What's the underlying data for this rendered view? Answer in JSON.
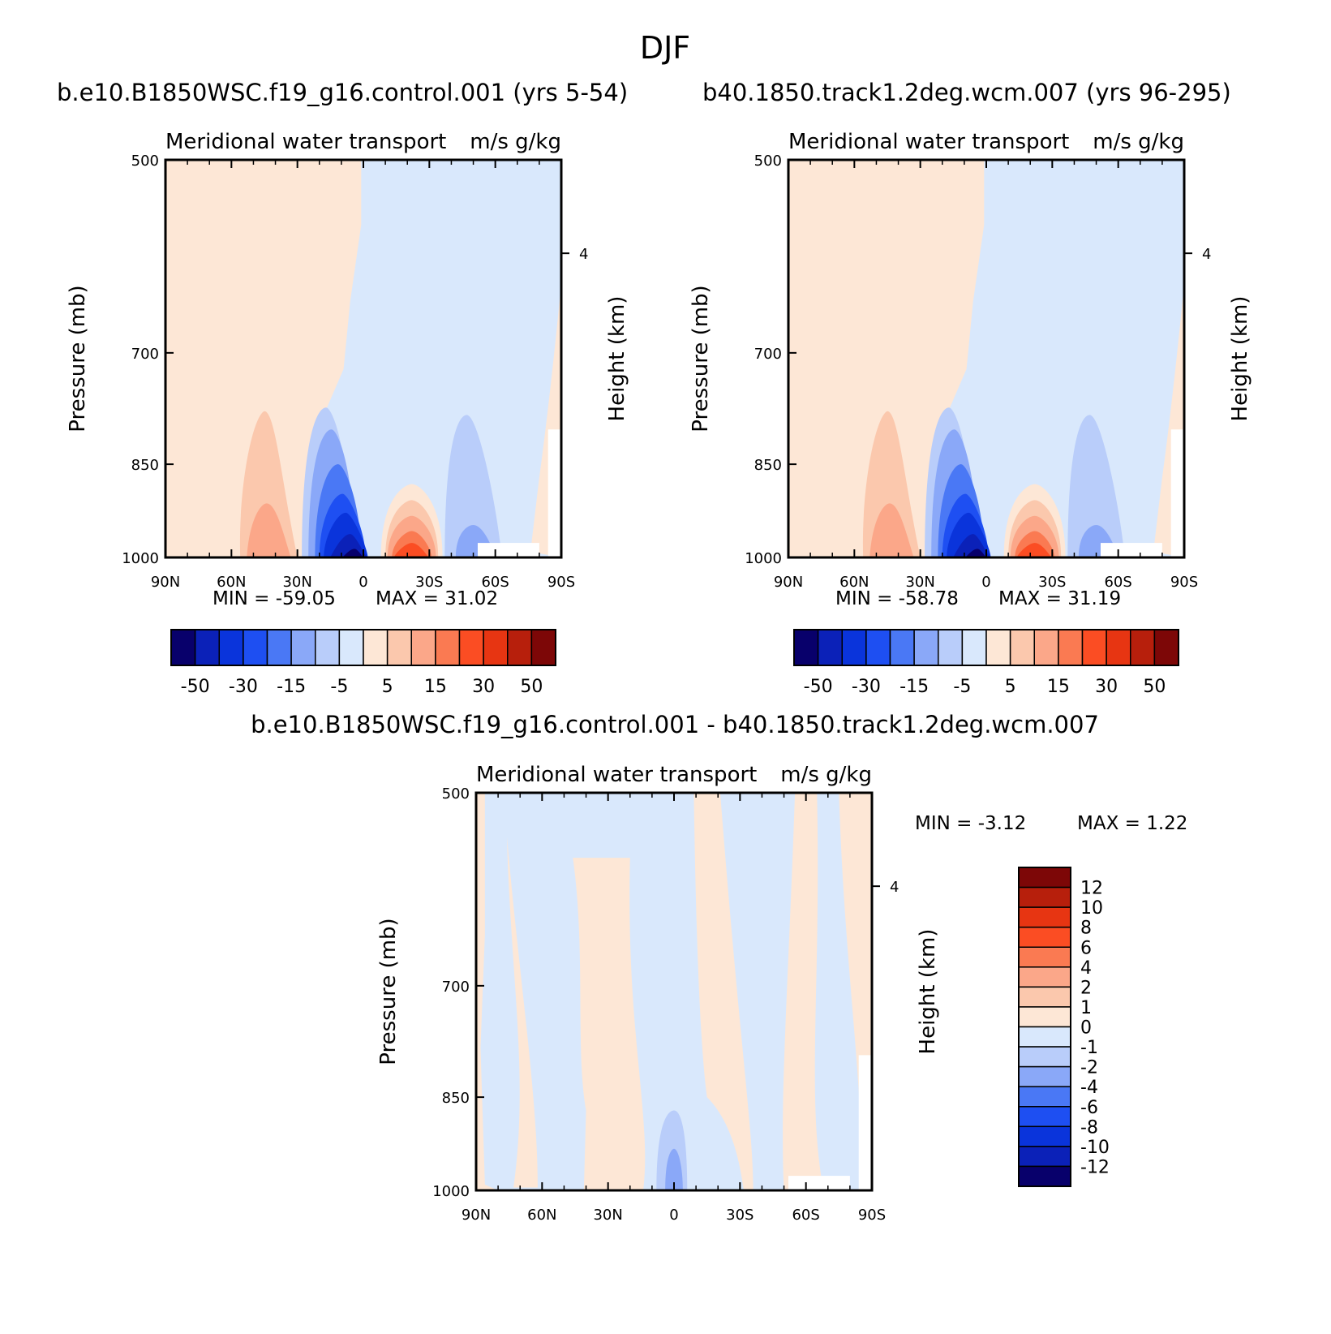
{
  "figure_title": "DJF",
  "chart_data": [
    {
      "type": "heatmap",
      "title": "b.e10.B1850WSC.f19_g16.control.001 (yrs 5-54)",
      "subtitle_left": "Meridional water transport",
      "subtitle_right": "m/s g/kg",
      "xlabel": "",
      "ylabel": "Pressure (mb)",
      "right_label": "Height (km)",
      "x_ticks": [
        "90N",
        "60N",
        "30N",
        "0",
        "30S",
        "60S",
        "90S"
      ],
      "y_ticks": [
        "500",
        "700",
        "850",
        "1000"
      ],
      "right_ticks": [
        "4"
      ],
      "ylim": [
        1000,
        500
      ],
      "y_scale": "log",
      "min_label": "MIN = -59.05",
      "max_label": "MAX = 31.02",
      "colorbar_orientation": "horizontal",
      "colorbar_labels": [
        "-50",
        "-30",
        "-15",
        "-5",
        "5",
        "15",
        "30",
        "50"
      ],
      "features": [
        {
          "sign": "negative",
          "value": -59.05,
          "latitude": "8N",
          "pressure_mb": 1000
        },
        {
          "sign": "positive",
          "value": 31.02,
          "latitude": "18S",
          "pressure_mb": 1000
        },
        {
          "sign": "positive",
          "value": 10,
          "latitude": "40N",
          "pressure_mb": 1000
        },
        {
          "sign": "negative",
          "value": -10,
          "latitude": "50S",
          "pressure_mb": 1000
        }
      ]
    },
    {
      "type": "heatmap",
      "title": "b40.1850.track1.2deg.wcm.007 (yrs 96-295)",
      "subtitle_left": "Meridional water transport",
      "subtitle_right": "m/s g/kg",
      "xlabel": "",
      "ylabel": "Pressure (mb)",
      "right_label": "Height (km)",
      "x_ticks": [
        "90N",
        "60N",
        "30N",
        "0",
        "30S",
        "60S",
        "90S"
      ],
      "y_ticks": [
        "500",
        "700",
        "850",
        "1000"
      ],
      "right_ticks": [
        "4"
      ],
      "ylim": [
        1000,
        500
      ],
      "y_scale": "log",
      "min_label": "MIN = -58.78",
      "max_label": "MAX = 31.19",
      "colorbar_orientation": "horizontal",
      "colorbar_labels": [
        "-50",
        "-30",
        "-15",
        "-5",
        "5",
        "15",
        "30",
        "50"
      ],
      "features": [
        {
          "sign": "negative",
          "value": -58.78,
          "latitude": "8N",
          "pressure_mb": 1000
        },
        {
          "sign": "positive",
          "value": 31.19,
          "latitude": "18S",
          "pressure_mb": 1000
        },
        {
          "sign": "positive",
          "value": 10,
          "latitude": "40N",
          "pressure_mb": 1000
        },
        {
          "sign": "negative",
          "value": -10,
          "latitude": "50S",
          "pressure_mb": 1000
        }
      ]
    },
    {
      "type": "heatmap",
      "title": "b.e10.B1850WSC.f19_g16.control.001 - b40.1850.track1.2deg.wcm.007",
      "subtitle_left": "Meridional water transport",
      "subtitle_right": "m/s g/kg",
      "xlabel": "",
      "ylabel": "Pressure (mb)",
      "right_label": "Height (km)",
      "x_ticks": [
        "90N",
        "60N",
        "30N",
        "0",
        "30S",
        "60S",
        "90S"
      ],
      "y_ticks": [
        "500",
        "700",
        "850",
        "1000"
      ],
      "right_ticks": [
        "4"
      ],
      "ylim": [
        1000,
        500
      ],
      "y_scale": "log",
      "min_label": "MIN =   -3.12",
      "max_label": "MAX =    1.22",
      "colorbar_orientation": "vertical",
      "colorbar_labels": [
        "12",
        "10",
        "8",
        "6",
        "4",
        "2",
        "1",
        "0",
        "-1",
        "-2",
        "-4",
        "-6",
        "-8",
        "-10",
        "-12"
      ],
      "features": [
        {
          "sign": "negative",
          "value": -3.12,
          "latitude": "0",
          "pressure_mb": 1000
        }
      ]
    }
  ],
  "colors": {
    "diverging_16": [
      "#08006b",
      "#0b21b8",
      "#0a34db",
      "#1e4ff2",
      "#4a78f5",
      "#8aa8f8",
      "#b9cdfa",
      "#d9e8fc",
      "#fde7d6",
      "#fbc8ad",
      "#fba789",
      "#fa7a52",
      "#fb4d23",
      "#e73512",
      "#b71f0c",
      "#7d0707"
    ],
    "diff_16": [
      "#08006b",
      "#0b21b8",
      "#0a34db",
      "#1e4ff2",
      "#4a78f5",
      "#8aa8f8",
      "#b9cdfa",
      "#d9e8fc",
      "#fde7d6",
      "#fbc8ad",
      "#fba789",
      "#fa7a52",
      "#fb4d23",
      "#e73512",
      "#b71f0c",
      "#7d0707"
    ]
  }
}
